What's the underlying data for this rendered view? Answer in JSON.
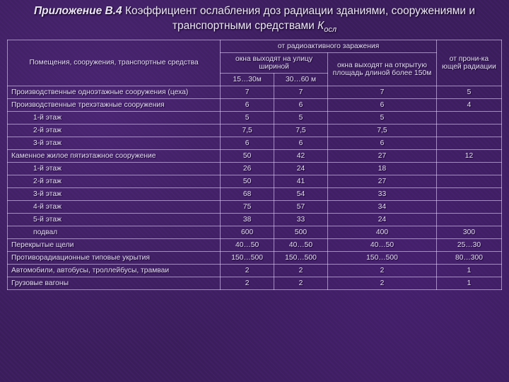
{
  "title_bold": "Приложение В.4",
  "title_rest": "  Коэффициент ослабления доз радиации зданиями, сооружениями и транспортными средствами ",
  "title_k": "К",
  "title_sub": "осл",
  "headers": {
    "col0": "Помещения, сооружения, транспортные средства",
    "grp1": "от радиоактивного заражения",
    "grp2": "окна выходят на улицу шириной",
    "c1": "15…30м",
    "c2": "30…60 м",
    "c3": "окна выходят на открытую площадь длиной более 150м",
    "c4": "от прони-ка ющей радиации"
  },
  "rows": [
    {
      "label": "Производственные одноэтажные сооружения (цеха)",
      "indent": false,
      "v": [
        "7",
        "7",
        "7",
        "5"
      ]
    },
    {
      "label": "Производственные трехэтажные сооружения",
      "indent": false,
      "v": [
        "6",
        "6",
        "6",
        "4"
      ]
    },
    {
      "label": "1-й этаж",
      "indent": true,
      "v": [
        "5",
        "5",
        "5",
        ""
      ]
    },
    {
      "label": "2-й этаж",
      "indent": true,
      "v": [
        "7,5",
        "7,5",
        "7,5",
        ""
      ]
    },
    {
      "label": "3-й этаж",
      "indent": true,
      "v": [
        "6",
        "6",
        "6",
        ""
      ]
    },
    {
      "label": "Каменное жилое пятиэтажное сооружение",
      "indent": false,
      "v": [
        "50",
        "42",
        "27",
        "12"
      ]
    },
    {
      "label": "1-й этаж",
      "indent": true,
      "v": [
        "26",
        "24",
        "18",
        ""
      ]
    },
    {
      "label": "2-й этаж",
      "indent": true,
      "v": [
        "50",
        "41",
        "27",
        ""
      ]
    },
    {
      "label": "3-й этаж",
      "indent": true,
      "v": [
        "68",
        "54",
        "33",
        ""
      ]
    },
    {
      "label": "4-й этаж",
      "indent": true,
      "v": [
        "75",
        "57",
        "34",
        ""
      ]
    },
    {
      "label": "5-й этаж",
      "indent": true,
      "v": [
        "38",
        "33",
        "24",
        ""
      ]
    },
    {
      "label": "подвал",
      "indent": true,
      "v": [
        "600",
        "500",
        "400",
        "300"
      ]
    },
    {
      "label": "Перекрытые щели",
      "indent": false,
      "v": [
        "40…50",
        "40…50",
        "40…50",
        "25…30"
      ]
    },
    {
      "label": "Противорадиационные типовые укрытия",
      "indent": false,
      "v": [
        "150…500",
        "150…500",
        "150…500",
        "80…300"
      ]
    },
    {
      "label": "Автомобили, автобусы, троллейбусы, трамваи",
      "indent": false,
      "v": [
        "2",
        "2",
        "2",
        "1"
      ]
    },
    {
      "label": "Грузовые вагоны",
      "indent": false,
      "v": [
        "2",
        "2",
        "2",
        "1"
      ]
    }
  ]
}
